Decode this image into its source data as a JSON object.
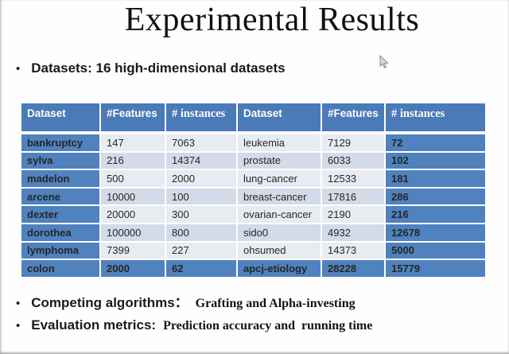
{
  "slide_title": "Experimental Results",
  "bullets": {
    "datasets": "Datasets: 16 high-dimensional datasets",
    "competing_label": "Competing algorithms：",
    "competing_value": "Grafting and Alpha-investing",
    "evaluation_label": "Evaluation metrics:",
    "evaluation_value": "Prediction accuracy and  running time",
    "bullet_glyph": "•"
  },
  "table": {
    "headers": [
      "Dataset",
      "#Features",
      "# instances",
      "Dataset",
      "#Features",
      "# instances"
    ],
    "rows": [
      [
        "bankruptcy",
        "147",
        "7063",
        "leukemia",
        "7129",
        "72"
      ],
      [
        "sylva",
        "216",
        "14374",
        "prostate",
        "6033",
        "102"
      ],
      [
        "madelon",
        "500",
        "2000",
        "lung-cancer",
        "12533",
        "181"
      ],
      [
        "arcene",
        "10000",
        "100",
        "breast-cancer",
        "17816",
        "286"
      ],
      [
        "dexter",
        "20000",
        "300",
        "ovarian-cancer",
        "2190",
        "216"
      ],
      [
        "dorothea",
        "100000",
        "800",
        "sido0",
        "4932",
        "12678"
      ],
      [
        "lymphoma",
        "7399",
        "227",
        "ohsumed",
        "14373",
        "5000"
      ],
      [
        "colon",
        "2000",
        "62",
        "apcj-etiology",
        "28228",
        "15779"
      ]
    ]
  },
  "colors": {
    "header_blue": "#4a7ab8",
    "cell_blue": "#4f82be",
    "band_light": "#e9ebf2",
    "band_dark": "#d3dae8",
    "header_text": "#ffffff",
    "body_text": "#262626"
  },
  "icons": {
    "cursor": "arrow-pointer-icon",
    "bullet": "bullet-dot-icon"
  }
}
